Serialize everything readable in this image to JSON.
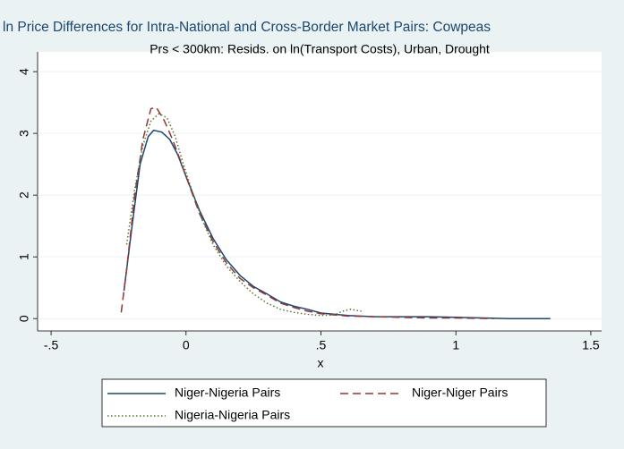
{
  "chart_data": {
    "type": "line",
    "title": "ln Price Differences for Intra-National and Cross-Border Market Pairs: Cowpeas",
    "subtitle": "Prs < 300km: Resids. on ln(Transport Costs), Urban, Drought",
    "x_label": "x",
    "xlim": [
      -0.55,
      1.54
    ],
    "ylim": [
      -0.2,
      4.32
    ],
    "xticks": [
      {
        "value": -0.5,
        "label": "-.5"
      },
      0,
      {
        "value": 0.5,
        "label": ".5"
      },
      1,
      1.5
    ],
    "yticks": [
      0,
      1,
      2,
      3,
      4
    ],
    "grid": true,
    "legend_position": "bottom",
    "series": [
      {
        "name": "Niger-Nigeria Pairs",
        "color": "#1a476f",
        "dash": "solid",
        "x": [
          -0.23,
          -0.2,
          -0.17,
          -0.14,
          -0.12,
          -0.09,
          -0.06,
          -0.03,
          0,
          0.05,
          0.1,
          0.15,
          0.2,
          0.25,
          0.3,
          0.35,
          0.4,
          0.45,
          0.5,
          0.6,
          0.7,
          0.8,
          0.9,
          1.0,
          1.1,
          1.2,
          1.35
        ],
        "values": [
          0.45,
          1.5,
          2.5,
          2.95,
          3.05,
          3.02,
          2.9,
          2.65,
          2.3,
          1.75,
          1.3,
          0.95,
          0.7,
          0.52,
          0.4,
          0.27,
          0.2,
          0.15,
          0.09,
          0.05,
          0.03,
          0.03,
          0.03,
          0.02,
          0.01,
          0.0,
          0.0
        ]
      },
      {
        "name": "Niger-Niger Pairs",
        "color": "#90353b",
        "dash": "dashed",
        "x": [
          -0.24,
          -0.22,
          -0.19,
          -0.16,
          -0.13,
          -0.11,
          -0.08,
          -0.05,
          -0.02,
          0,
          0.05,
          0.1,
          0.15,
          0.2,
          0.25,
          0.3,
          0.35,
          0.4,
          0.45,
          0.5,
          0.6,
          0.7,
          0.8,
          0.9,
          1.0,
          1.14
        ],
        "values": [
          0.1,
          0.8,
          2.0,
          2.9,
          3.4,
          3.42,
          3.2,
          2.9,
          2.55,
          2.3,
          1.7,
          1.25,
          0.9,
          0.65,
          0.5,
          0.38,
          0.25,
          0.18,
          0.12,
          0.08,
          0.04,
          0.03,
          0.02,
          0.01,
          0.01,
          0.0
        ]
      },
      {
        "name": "Nigeria-Nigeria Pairs",
        "color": "#55752f",
        "dash": "dotted",
        "x": [
          -0.22,
          -0.19,
          -0.16,
          -0.13,
          -0.1,
          -0.07,
          -0.04,
          -0.01,
          0.02,
          0.06,
          0.1,
          0.15,
          0.2,
          0.25,
          0.3,
          0.35,
          0.4,
          0.45,
          0.5,
          0.55,
          0.58,
          0.61,
          0.65
        ],
        "values": [
          1.2,
          2.1,
          2.8,
          3.2,
          3.32,
          3.25,
          2.95,
          2.5,
          2.1,
          1.6,
          1.2,
          0.85,
          0.6,
          0.4,
          0.25,
          0.15,
          0.1,
          0.07,
          0.05,
          0.06,
          0.12,
          0.15,
          0.12
        ]
      }
    ]
  }
}
